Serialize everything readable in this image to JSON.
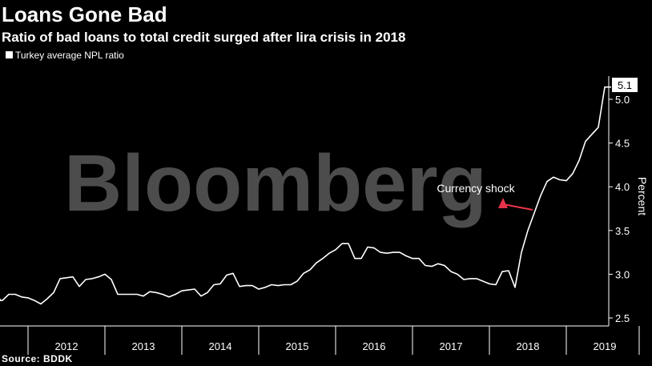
{
  "header": {
    "title": "Loans Gone Bad",
    "subtitle": "Ratio of bad loans to total credit surged after lira crisis in 2018"
  },
  "watermark": "Bloomberg",
  "source": "Source: BDDK",
  "colors": {
    "background": "#000000",
    "line": "#ffffff",
    "annotation_arrow": "#e8334a"
  },
  "chart_data": {
    "type": "line",
    "ylabel": "Percent",
    "ylim": [
      2.5,
      5.2
    ],
    "yticks": [
      2.5,
      3.0,
      3.5,
      4.0,
      4.5,
      5.0
    ],
    "ytick_labels": [
      "2.5",
      "3.0",
      "3.5",
      "4.0",
      "4.5",
      "5.0"
    ],
    "x_categories": [
      "2012",
      "2013",
      "2014",
      "2015",
      "2016",
      "2017",
      "2018",
      "2019"
    ],
    "legend": {
      "label": "Turkey average NPL ratio",
      "position": "top-left"
    },
    "last_value_label": "5.1",
    "annotation": {
      "text": "Currency shock",
      "target_date": "2018-08"
    },
    "series": [
      {
        "name": "Turkey average NPL ratio",
        "x": [
          "2011-07",
          "2011-08",
          "2011-09",
          "2011-10",
          "2011-11",
          "2011-12",
          "2012-01",
          "2012-02",
          "2012-03",
          "2012-04",
          "2012-05",
          "2012-06",
          "2012-07",
          "2012-08",
          "2012-09",
          "2012-10",
          "2012-11",
          "2012-12",
          "2013-01",
          "2013-02",
          "2013-03",
          "2013-04",
          "2013-05",
          "2013-06",
          "2013-07",
          "2013-08",
          "2013-09",
          "2013-10",
          "2013-11",
          "2013-12",
          "2014-01",
          "2014-02",
          "2014-03",
          "2014-04",
          "2014-05",
          "2014-06",
          "2014-07",
          "2014-08",
          "2014-09",
          "2014-10",
          "2014-11",
          "2014-12",
          "2015-01",
          "2015-02",
          "2015-03",
          "2015-04",
          "2015-05",
          "2015-06",
          "2015-07",
          "2015-08",
          "2015-09",
          "2015-10",
          "2015-11",
          "2015-12",
          "2016-01",
          "2016-02",
          "2016-03",
          "2016-04",
          "2016-05",
          "2016-06",
          "2016-07",
          "2016-08",
          "2016-09",
          "2016-10",
          "2016-11",
          "2016-12",
          "2017-01",
          "2017-02",
          "2017-03",
          "2017-04",
          "2017-05",
          "2017-06",
          "2017-07",
          "2017-08",
          "2017-09",
          "2017-10",
          "2017-11",
          "2017-12",
          "2018-01",
          "2018-02",
          "2018-03",
          "2018-04",
          "2018-05",
          "2018-06",
          "2018-07",
          "2018-08",
          "2018-09",
          "2018-10",
          "2018-11",
          "2018-12",
          "2019-01",
          "2019-02",
          "2019-03",
          "2019-04",
          "2019-05",
          "2019-06",
          "2019-07",
          "2019-08"
        ],
        "y": [
          2.72,
          2.7,
          2.7,
          2.77,
          2.77,
          2.74,
          2.73,
          2.7,
          2.66,
          2.72,
          2.79,
          2.95,
          2.96,
          2.97,
          2.86,
          2.94,
          2.95,
          2.97,
          3.0,
          2.94,
          2.77,
          2.77,
          2.77,
          2.77,
          2.75,
          2.8,
          2.79,
          2.77,
          2.74,
          2.77,
          2.81,
          2.82,
          2.83,
          2.75,
          2.79,
          2.88,
          2.89,
          2.99,
          3.01,
          2.86,
          2.87,
          2.87,
          2.83,
          2.85,
          2.88,
          2.87,
          2.88,
          2.88,
          2.92,
          3.01,
          3.05,
          3.13,
          3.18,
          3.24,
          3.28,
          3.35,
          3.35,
          3.18,
          3.18,
          3.31,
          3.3,
          3.25,
          3.24,
          3.25,
          3.25,
          3.21,
          3.18,
          3.18,
          3.1,
          3.09,
          3.12,
          3.1,
          3.03,
          3.0,
          2.94,
          2.95,
          2.95,
          2.92,
          2.89,
          2.88,
          3.03,
          3.04,
          2.85,
          3.25,
          3.5,
          3.7,
          3.9,
          4.06,
          4.11,
          4.08,
          4.07,
          4.15,
          4.3,
          4.52,
          4.6,
          4.68,
          5.14,
          5.14
        ]
      }
    ]
  }
}
